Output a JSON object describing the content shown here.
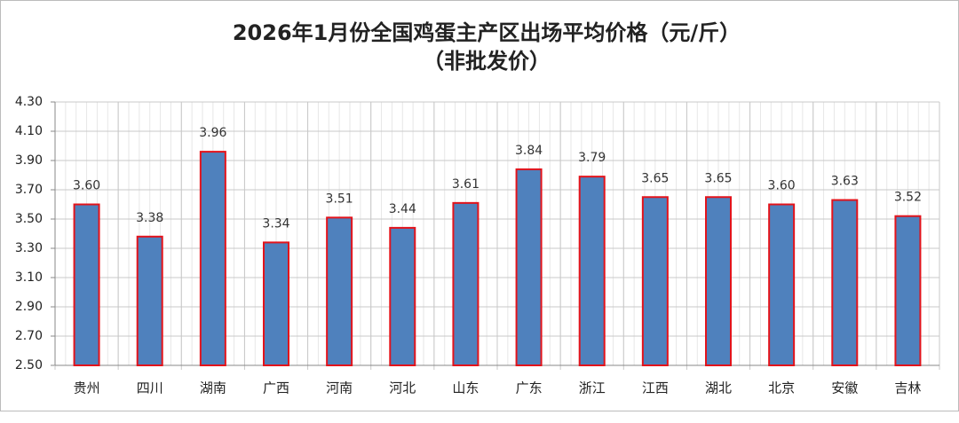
{
  "chart_data": {
    "type": "bar",
    "title": "2026年1月份全国鸡蛋主产区出场平均价格（元/斤）",
    "subtitle": "（非批发价）",
    "categories": [
      "贵州",
      "四川",
      "湖南",
      "广西",
      "河南",
      "河北",
      "山东",
      "广东",
      "浙江",
      "江西",
      "湖北",
      "北京",
      "安徽",
      "吉林"
    ],
    "values": [
      3.6,
      3.38,
      3.96,
      3.34,
      3.51,
      3.44,
      3.61,
      3.84,
      3.79,
      3.65,
      3.65,
      3.6,
      3.63,
      3.52
    ],
    "value_labels": [
      "3.60",
      "3.38",
      "3.96",
      "3.34",
      "3.51",
      "3.44",
      "3.61",
      "3.84",
      "3.79",
      "3.65",
      "3.65",
      "3.60",
      "3.63",
      "3.52"
    ],
    "color": "#4f81bd",
    "edge_color": "#e3131b",
    "ylim": [
      2.5,
      4.3
    ],
    "yticks": [
      {
        "value": 2.5,
        "label": "2.50"
      },
      {
        "value": 2.7,
        "label": "2.70"
      },
      {
        "value": 2.9,
        "label": "2.90"
      },
      {
        "value": 3.1,
        "label": "3.10"
      },
      {
        "value": 3.3,
        "label": "3.30"
      },
      {
        "value": 3.5,
        "label": "3.50"
      },
      {
        "value": 3.7,
        "label": "3.70"
      },
      {
        "value": 3.9,
        "label": "3.90"
      },
      {
        "value": 4.1,
        "label": "4.10"
      },
      {
        "value": 4.3,
        "label": "4.30"
      }
    ],
    "grid": true
  }
}
